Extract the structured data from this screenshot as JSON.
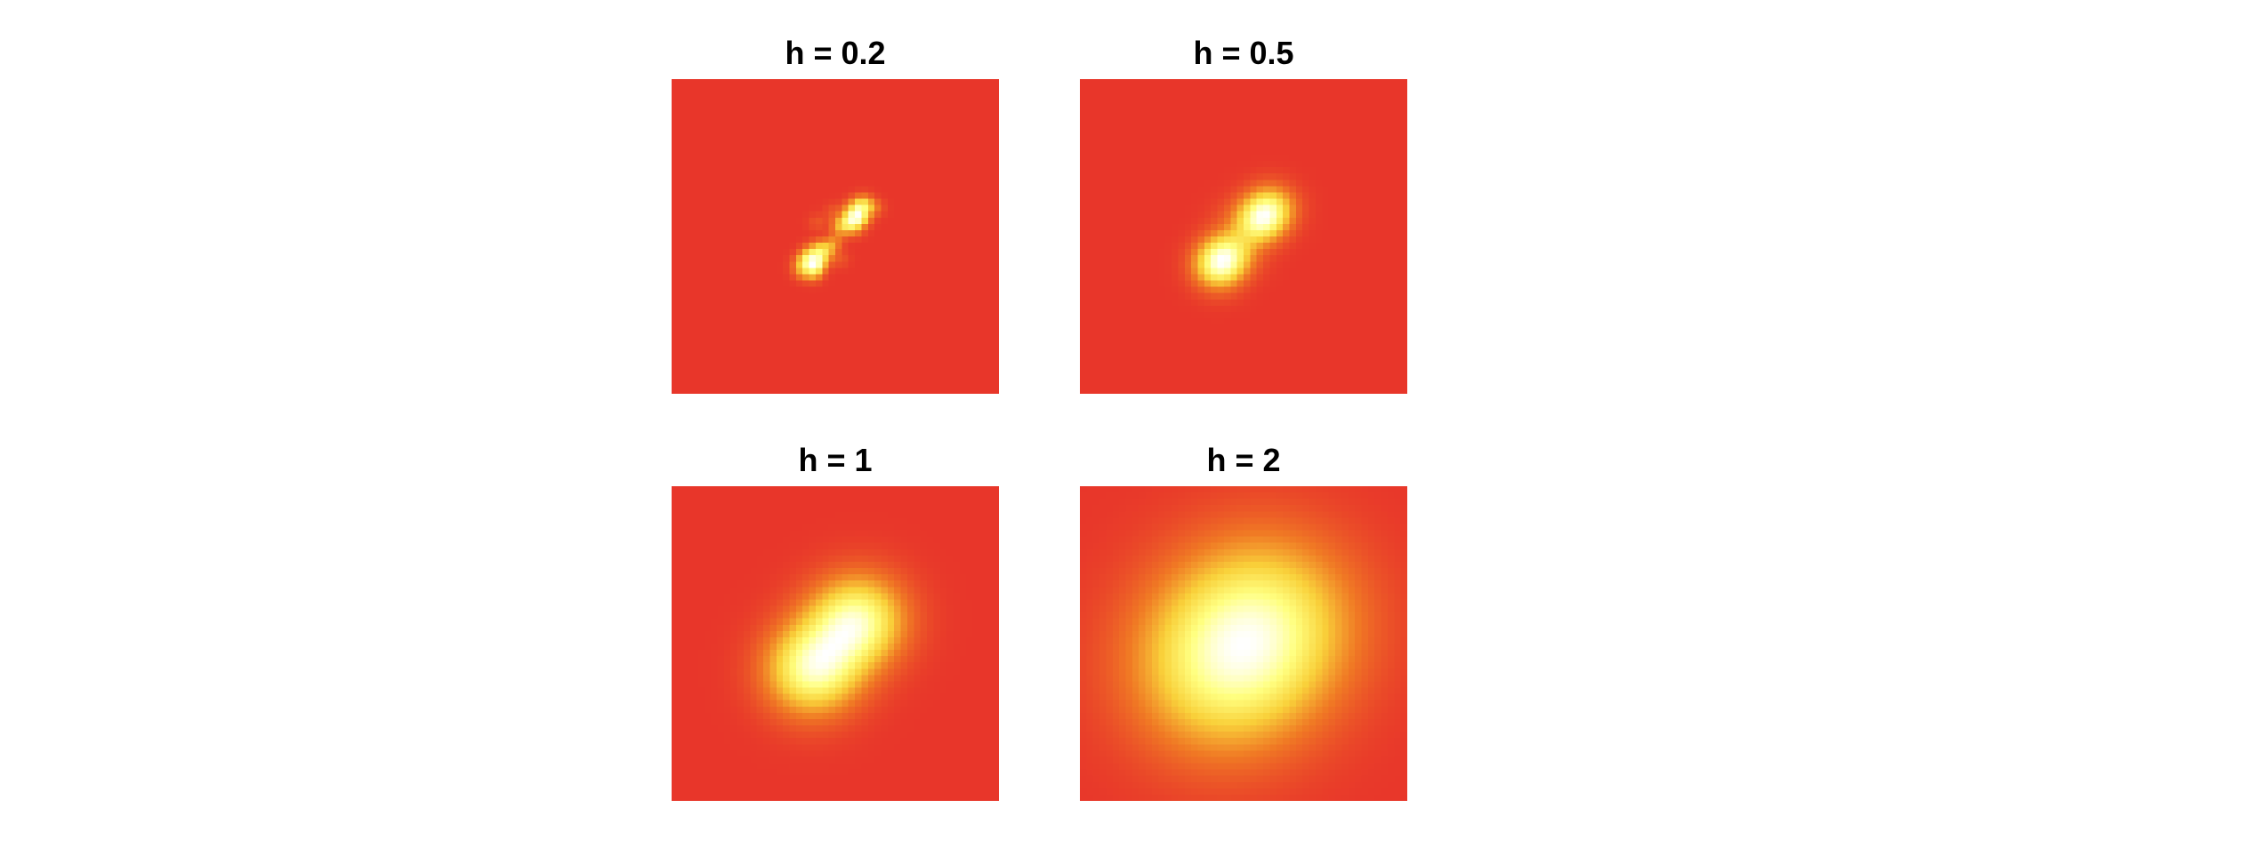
{
  "chart_data": [
    {
      "type": "heatmap",
      "title": "h = 0.2",
      "bandwidth": 0.2,
      "grid_size": 50,
      "colormap": [
        "#E8362A",
        "#F07A24",
        "#F9D13A",
        "#FFFF80",
        "#FFFFFF"
      ],
      "axes": "none",
      "clusters": [
        {
          "center": [
            -0.7,
            -0.9
          ],
          "weight": 1.0
        },
        {
          "center": [
            0.7,
            0.8
          ],
          "weight": 1.0
        }
      ]
    },
    {
      "type": "heatmap",
      "title": "h = 0.5",
      "bandwidth": 0.5,
      "grid_size": 50,
      "colormap": [
        "#E8362A",
        "#F07A24",
        "#F9D13A",
        "#FFFF80",
        "#FFFFFF"
      ],
      "axes": "none",
      "clusters": [
        {
          "center": [
            -0.7,
            -0.9
          ],
          "weight": 1.0
        },
        {
          "center": [
            0.7,
            0.8
          ],
          "weight": 1.0
        }
      ]
    },
    {
      "type": "heatmap",
      "title": "h = 1",
      "bandwidth": 1,
      "grid_size": 50,
      "colormap": [
        "#E8362A",
        "#F07A24",
        "#F9D13A",
        "#FFFF80",
        "#FFFFFF"
      ],
      "axes": "none",
      "clusters": [
        {
          "center": [
            -0.7,
            -0.9
          ],
          "weight": 1.0
        },
        {
          "center": [
            0.7,
            0.8
          ],
          "weight": 1.0
        }
      ]
    },
    {
      "type": "heatmap",
      "title": "h = 2",
      "bandwidth": 2,
      "grid_size": 50,
      "colormap": [
        "#E8362A",
        "#F07A24",
        "#F9D13A",
        "#FFFF80",
        "#FFFFFF"
      ],
      "axes": "none",
      "clusters": [
        {
          "center": [
            -0.7,
            -0.9
          ],
          "weight": 1.0
        },
        {
          "center": [
            0.7,
            0.8
          ],
          "weight": 1.0
        }
      ]
    }
  ]
}
